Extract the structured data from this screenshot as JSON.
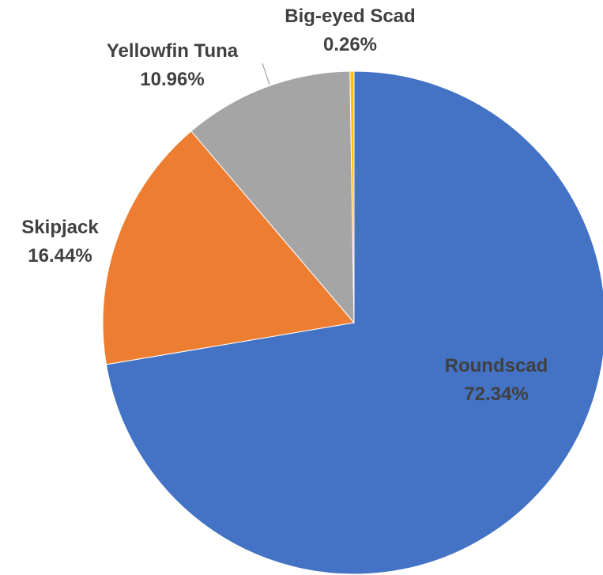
{
  "chart_data": {
    "type": "pie",
    "title": "",
    "categories": [
      "Roundscad",
      "Skipjack",
      "Yellowfin Tuna",
      "Big-eyed Scad"
    ],
    "values": [
      72.34,
      16.44,
      10.96,
      0.26
    ],
    "labels": [
      "72.34%",
      "16.44%",
      "10.96%",
      "0.26%"
    ],
    "colors": [
      "#4472C4",
      "#ED7D31",
      "#A5A5A5",
      "#FFC000"
    ],
    "start_angle_deg": 0,
    "direction": "clockwise",
    "legend": "none",
    "label_position": "mixed"
  }
}
